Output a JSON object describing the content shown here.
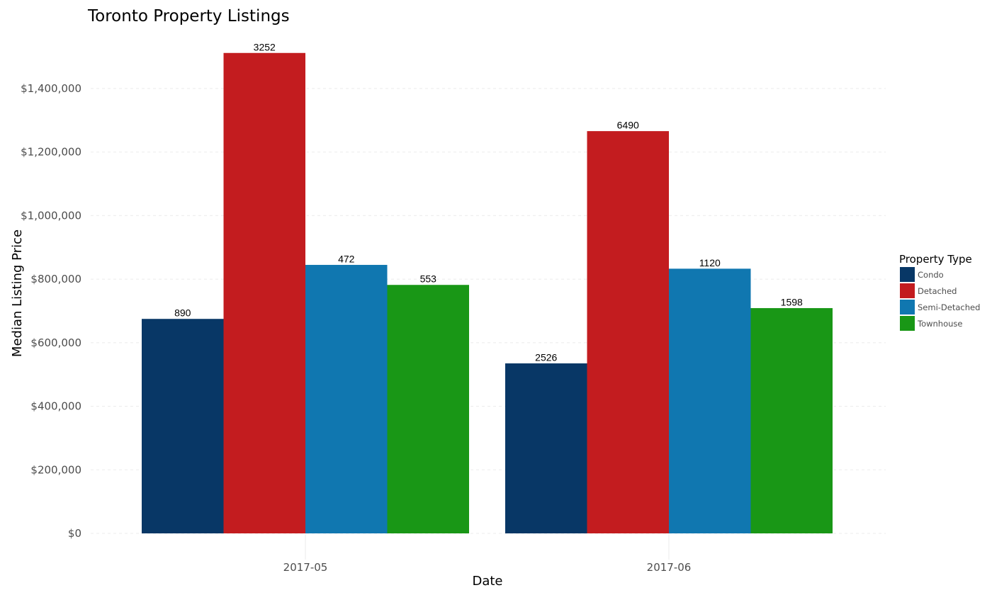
{
  "chart_data": {
    "type": "bar",
    "title": "Toronto Property Listings",
    "xlabel": "Date",
    "ylabel": "Median Listing Price",
    "categories": [
      "2017-05",
      "2017-06"
    ],
    "ylim": [
      0,
      1500000
    ],
    "yticks": [
      0,
      200000,
      400000,
      600000,
      800000,
      1000000,
      1200000,
      1400000
    ],
    "ytick_labels": [
      "$0",
      "$200,000",
      "$400,000",
      "$600,000",
      "$800,000",
      "$1,000,000",
      "$1,200,000",
      "$1,400,000"
    ],
    "grid": "horizontal-dashed",
    "legend_position": "right",
    "legend_title": "Property Type",
    "series": [
      {
        "name": "Condo",
        "color": "#083766",
        "values": [
          675000,
          535000
        ],
        "labels": [
          "890",
          "2526"
        ]
      },
      {
        "name": "Detached",
        "color": "#c31c1f",
        "values": [
          1512000,
          1266000
        ],
        "labels": [
          "3252",
          "6490"
        ]
      },
      {
        "name": "Semi-Detached",
        "color": "#1077b0",
        "values": [
          845000,
          833000
        ],
        "labels": [
          "472",
          "1120"
        ]
      },
      {
        "name": "Townhouse",
        "color": "#199716",
        "values": [
          782000,
          709000
        ],
        "labels": [
          "553",
          "1598"
        ]
      }
    ]
  }
}
